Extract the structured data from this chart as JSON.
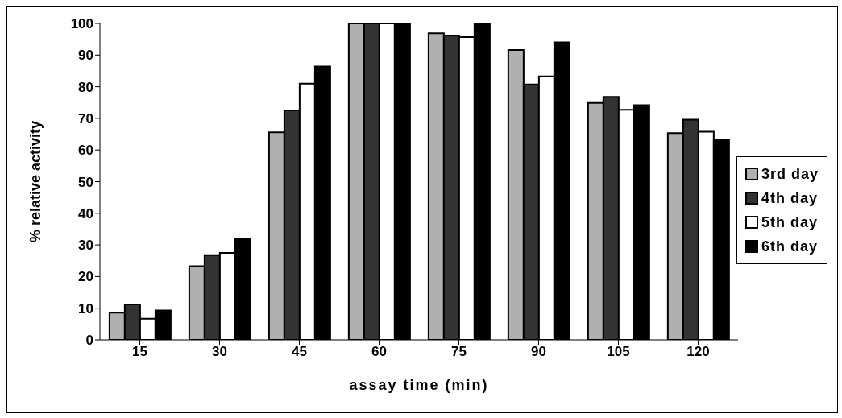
{
  "chart_data": {
    "type": "bar",
    "xlabel": "assay time (min)",
    "ylabel": "% relative activity",
    "categories": [
      "15",
      "30",
      "45",
      "60",
      "75",
      "90",
      "105",
      "120"
    ],
    "series": [
      {
        "name": "3rd day",
        "color": "#b0b0b0",
        "values": [
          8.6,
          23.3,
          65.6,
          100,
          96.9,
          91.6,
          74.9,
          65.3
        ]
      },
      {
        "name": "4th day",
        "color": "#333333",
        "values": [
          11.2,
          26.8,
          72.5,
          100,
          96.2,
          80.7,
          76.8,
          69.6
        ]
      },
      {
        "name": "5th day",
        "color": "#ffffff",
        "values": [
          6.7,
          27.5,
          81,
          100,
          95.7,
          83.3,
          72.7,
          65.8
        ]
      },
      {
        "name": "6th day",
        "color": "#000000",
        "values": [
          9.3,
          31.8,
          86.4,
          100,
          100,
          94,
          74.2,
          63.3
        ]
      }
    ],
    "ylim": [
      0,
      100
    ],
    "yticks": [
      0,
      10,
      20,
      30,
      40,
      50,
      60,
      70,
      80,
      90,
      100
    ],
    "legend": "right"
  }
}
